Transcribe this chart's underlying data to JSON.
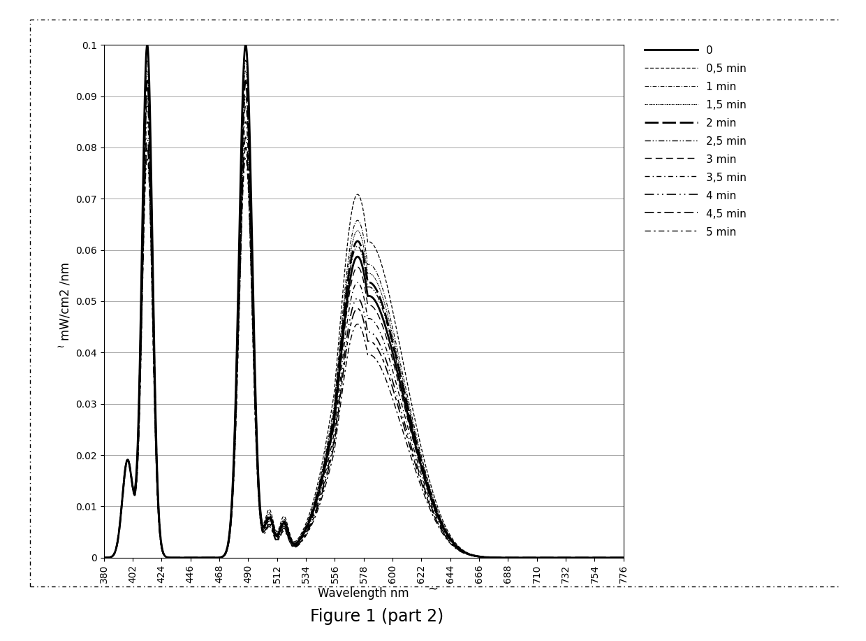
{
  "title": "Figure 1 (part 2)",
  "xlabel": "Wavelength nm",
  "ylabel": "mW/cm2 /nm",
  "xlim": [
    380,
    776
  ],
  "ylim": [
    0,
    0.1
  ],
  "xticks": [
    380,
    402,
    424,
    446,
    468,
    490,
    512,
    534,
    556,
    578,
    600,
    622,
    644,
    666,
    688,
    710,
    732,
    754,
    776
  ],
  "yticks": [
    0,
    0.01,
    0.02,
    0.03,
    0.04,
    0.05,
    0.06,
    0.07,
    0.08,
    0.09,
    0.1
  ],
  "legend_labels": [
    "0",
    "0,5 min",
    "1 min",
    "1,5 min",
    "2 min",
    "2,5 min",
    "3 min",
    "3,5 min",
    "4 min",
    "4,5 min",
    "5 min"
  ],
  "background_color": "#ffffff",
  "line_color": "#000000",
  "scales_413": [
    0.1,
    0.1,
    0.097,
    0.095,
    0.093,
    0.09,
    0.088,
    0.085,
    0.082,
    0.08,
    0.078
  ],
  "scales_488": [
    0.1,
    0.1,
    0.097,
    0.095,
    0.093,
    0.09,
    0.088,
    0.085,
    0.082,
    0.08,
    0.078
  ],
  "scales_578": [
    0.058,
    0.07,
    0.065,
    0.063,
    0.061,
    0.06,
    0.056,
    0.053,
    0.05,
    0.048,
    0.045
  ],
  "line_widths": [
    2.0,
    0.9,
    0.8,
    0.8,
    2.0,
    1.0,
    1.0,
    1.0,
    1.2,
    1.2,
    1.0
  ],
  "line_dashes": [
    [],
    [
      4,
      2
    ],
    [
      5,
      2,
      1,
      2
    ],
    [
      2,
      1,
      1,
      1,
      1,
      1
    ],
    [
      7,
      2
    ],
    [
      6,
      2,
      1,
      2,
      1,
      2
    ],
    [
      7,
      4
    ],
    [
      5,
      3,
      1,
      3
    ],
    [
      8,
      3,
      1,
      3,
      1,
      3
    ],
    [
      8,
      3,
      3,
      3
    ],
    [
      6,
      3,
      2,
      3
    ]
  ]
}
